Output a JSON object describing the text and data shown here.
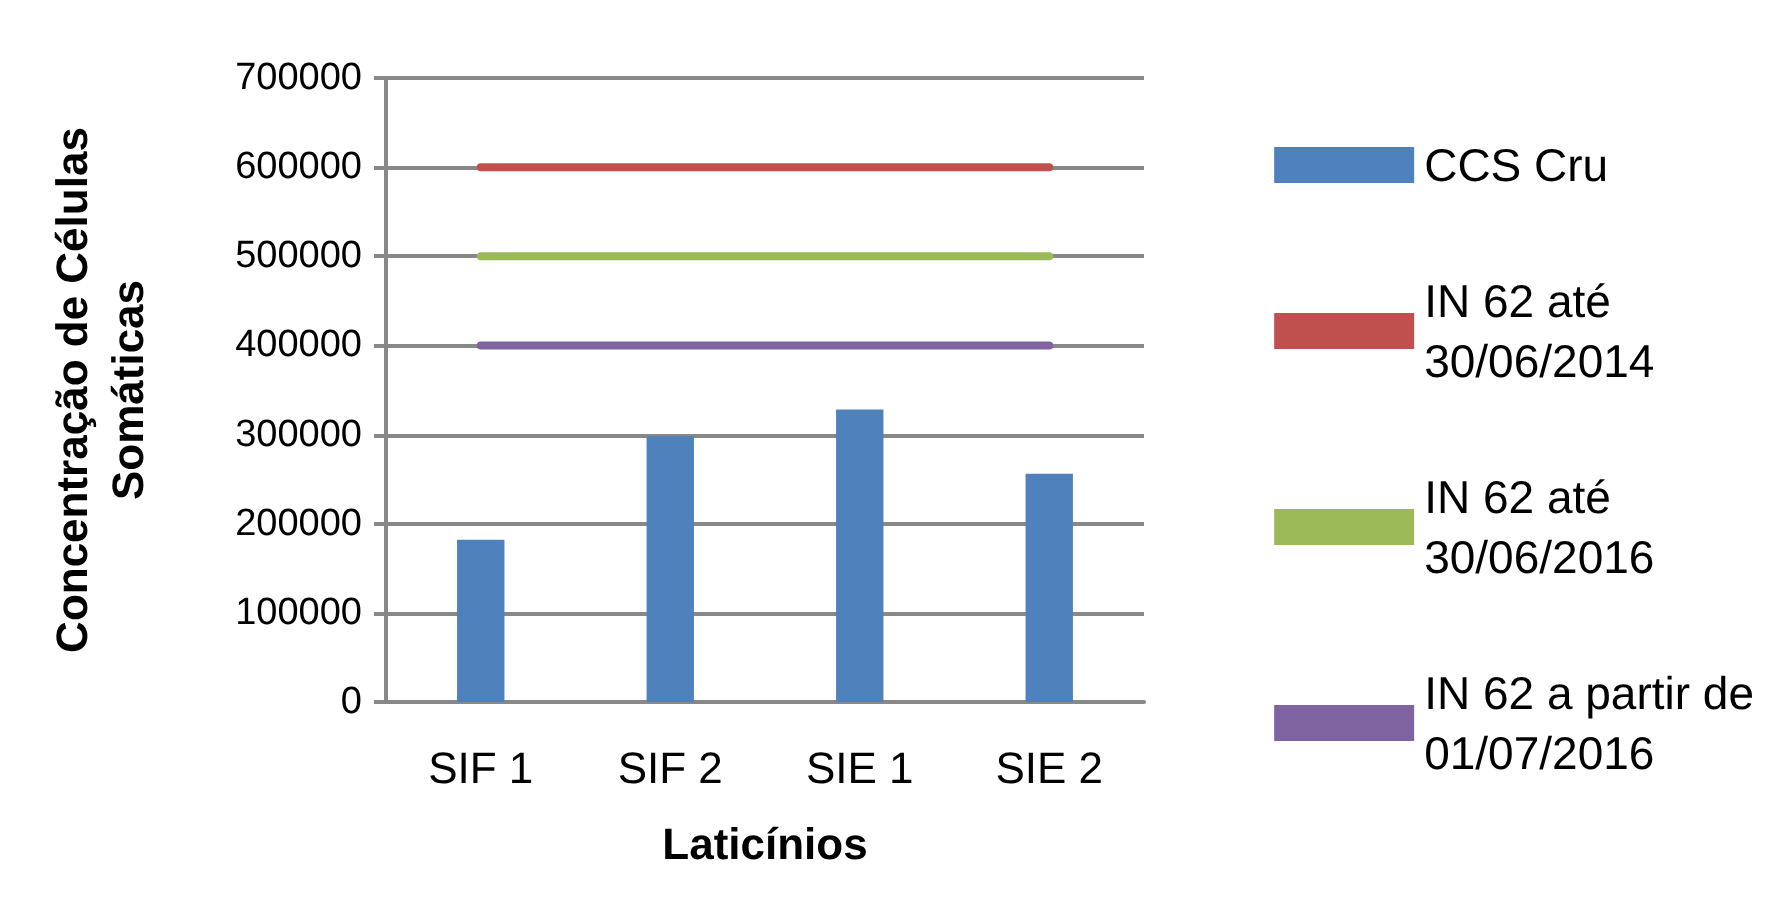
{
  "chart_data": {
    "type": "bar",
    "xlabel": "Laticínios",
    "ylabel": "Concentração de Células\nSomáticas",
    "categories": [
      "SIF 1",
      "SIF 2",
      "SIE 1",
      "SIE 2"
    ],
    "series": [
      {
        "name": "CCS Cru",
        "color": "#4f81bd",
        "values": [
          182000,
          298000,
          328000,
          256000
        ]
      },
      {
        "name": "IN 62 até 30/06/2014",
        "type": "line",
        "color": "#c0504d",
        "values": [
          600000,
          600000,
          600000,
          600000
        ]
      },
      {
        "name": "IN 62 até 30/06/2016",
        "type": "line",
        "color": "#9bbb59",
        "values": [
          500000,
          500000,
          500000,
          500000
        ]
      },
      {
        "name": "IN 62 a partir de 01/07/2016",
        "type": "line",
        "color": "#8064a2",
        "values": [
          400000,
          400000,
          400000,
          400000
        ]
      }
    ],
    "ylim": [
      0,
      700000
    ],
    "yticks": [
      0,
      100000,
      200000,
      300000,
      400000,
      500000,
      600000,
      700000
    ],
    "grid": "y",
    "legend": "right",
    "marker": "none",
    "line_style": "solid"
  }
}
